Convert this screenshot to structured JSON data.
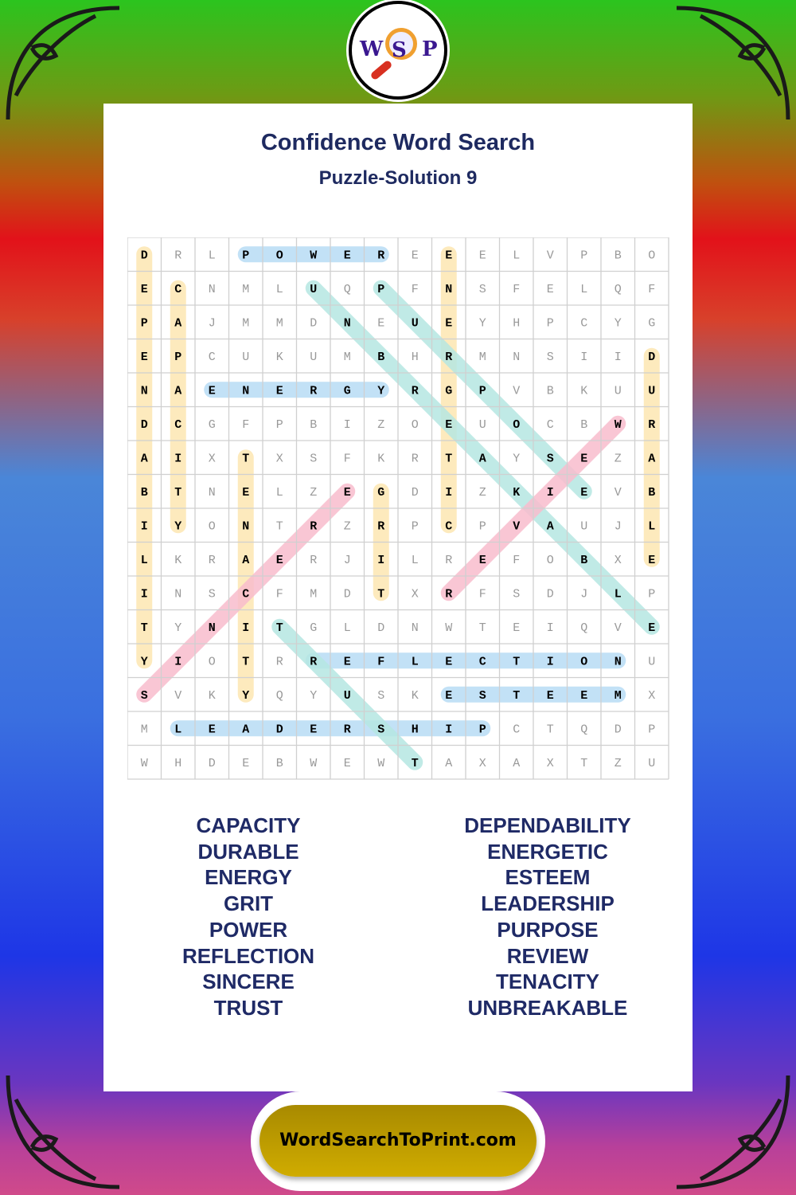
{
  "title": "Confidence Word Search",
  "subtitle": "Puzzle-Solution 9",
  "logo": {
    "letters": [
      "W",
      "S",
      "P"
    ]
  },
  "footer": {
    "site": "WordSearchToPrint.com"
  },
  "colors": {
    "highlight_blue": "#b7dcf5",
    "highlight_yellow": "#fde6b2",
    "highlight_teal": "#b5e6e2",
    "highlight_pink": "#f8bccd",
    "title": "#1e2a60"
  },
  "grid": [
    "DRLPOWEREEELVPBO",
    "ECNMLUQPFNSFELQF",
    "PAJMMDNEUEYHPCYG",
    "EPCUKUMBHRMNSIID",
    "NAENERGYRGPVBKUU",
    "DCGFPBIZOEUOCBWR",
    "AIXTXSFKRTAYSEZA",
    "BTNELZEGDIZKIEVB",
    "IYONTRZRPCPVAUJL",
    "LKRAERJILREFOBXE",
    "INSCFMDTXRFSDJLP",
    "TYNITGLDNWTEIQVE",
    "YIOTRREFLECTIONU",
    "SVKYQYUSKESTEEMX",
    "MLEADERSHIPCTQDP",
    "WHDEBWEWTAXAXTZU"
  ],
  "solutions": [
    {
      "word": "POWER",
      "from": [
        0,
        3
      ],
      "to": [
        0,
        7
      ],
      "color": "blue"
    },
    {
      "word": "ENERGY",
      "from": [
        4,
        2
      ],
      "to": [
        4,
        7
      ],
      "color": "blue"
    },
    {
      "word": "REFLECTION",
      "from": [
        12,
        5
      ],
      "to": [
        12,
        14
      ],
      "color": "blue"
    },
    {
      "word": "ESTEEM",
      "from": [
        13,
        9
      ],
      "to": [
        13,
        14
      ],
      "color": "blue"
    },
    {
      "word": "LEADERSHIP",
      "from": [
        14,
        1
      ],
      "to": [
        14,
        10
      ],
      "color": "blue"
    },
    {
      "word": "DEPENDABILITY",
      "from": [
        0,
        0
      ],
      "to": [
        12,
        0
      ],
      "color": "yellow"
    },
    {
      "word": "CAPACITY",
      "from": [
        1,
        1
      ],
      "to": [
        8,
        1
      ],
      "color": "yellow"
    },
    {
      "word": "TENACITY",
      "from": [
        6,
        3
      ],
      "to": [
        13,
        3
      ],
      "color": "yellow"
    },
    {
      "word": "GRIT",
      "from": [
        7,
        7
      ],
      "to": [
        10,
        7
      ],
      "color": "yellow"
    },
    {
      "word": "ENERGETIC",
      "from": [
        0,
        9
      ],
      "to": [
        8,
        9
      ],
      "color": "yellow"
    },
    {
      "word": "DURABLE",
      "from": [
        3,
        15
      ],
      "to": [
        9,
        15
      ],
      "color": "yellow"
    },
    {
      "word": "UNBREAKABLE",
      "from": [
        1,
        5
      ],
      "to": [
        11,
        15
      ],
      "color": "teal"
    },
    {
      "word": "PURPOSE",
      "from": [
        1,
        7
      ],
      "to": [
        7,
        13
      ],
      "color": "teal"
    },
    {
      "word": "TRUST",
      "from": [
        11,
        4
      ],
      "to": [
        15,
        8
      ],
      "color": "teal"
    },
    {
      "word": "SINCERE",
      "from": [
        13,
        0
      ],
      "to": [
        7,
        6
      ],
      "color": "pink"
    },
    {
      "word": "REVIEW",
      "from": [
        10,
        9
      ],
      "to": [
        5,
        14
      ],
      "color": "pink"
    }
  ],
  "word_list": {
    "left": [
      "CAPACITY",
      "DURABLE",
      "ENERGY",
      "GRIT",
      "POWER",
      "REFLECTION",
      "SINCERE",
      "TRUST"
    ],
    "right": [
      "DEPENDABILITY",
      "ENERGETIC",
      "ESTEEM",
      "LEADERSHIP",
      "PURPOSE",
      "REVIEW",
      "TENACITY",
      "UNBREAKABLE"
    ]
  }
}
